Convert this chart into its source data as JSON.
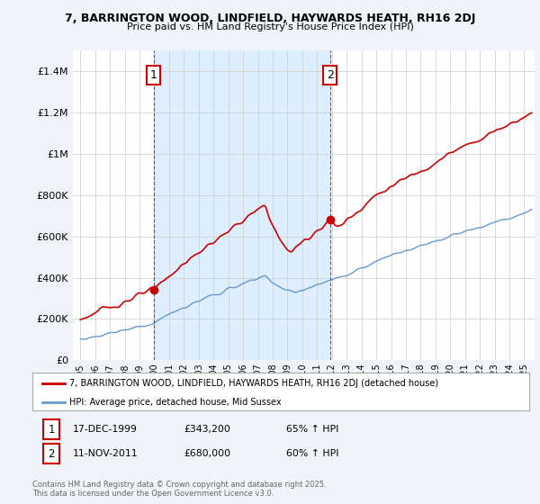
{
  "title_line1": "7, BARRINGTON WOOD, LINDFIELD, HAYWARDS HEATH, RH16 2DJ",
  "title_line2": "Price paid vs. HM Land Registry's House Price Index (HPI)",
  "ylim": [
    0,
    1500000
  ],
  "yticks": [
    0,
    200000,
    400000,
    600000,
    800000,
    1000000,
    1200000,
    1400000
  ],
  "xlim": [
    1994.5,
    2025.7
  ],
  "sale1": {
    "date_num": 1999.96,
    "price": 343200,
    "label": "1"
  },
  "sale2": {
    "date_num": 2011.87,
    "price": 680000,
    "label": "2"
  },
  "legend_label_red": "7, BARRINGTON WOOD, LINDFIELD, HAYWARDS HEATH, RH16 2DJ (detached house)",
  "legend_label_blue": "HPI: Average price, detached house, Mid Sussex",
  "annotation1": [
    "1",
    "17-DEC-1999",
    "£343,200",
    "65% ↑ HPI"
  ],
  "annotation2": [
    "2",
    "11-NOV-2011",
    "£680,000",
    "60% ↑ HPI"
  ],
  "footer": "Contains HM Land Registry data © Crown copyright and database right 2025.\nThis data is licensed under the Open Government Licence v3.0.",
  "red_color": "#cc0000",
  "blue_color": "#6699cc",
  "shade_color": "#ddeeff",
  "dashed_color": "#cc0000",
  "background_color": "#f0f4f8",
  "plot_bg_color": "#ffffff",
  "grid_color": "#cccccc"
}
